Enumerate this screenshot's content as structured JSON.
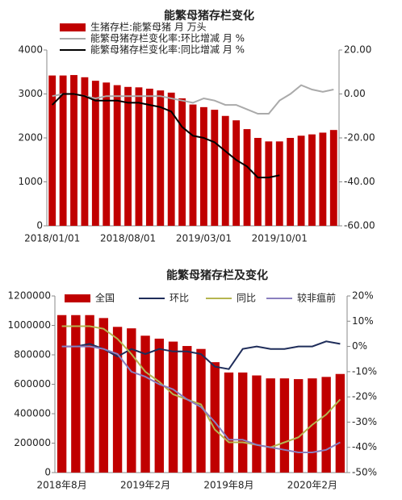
{
  "chart_data": [
    {
      "type": "combo",
      "title": "能繁母猪存栏变化",
      "categories": [
        "2018/01/01",
        null,
        null,
        null,
        null,
        null,
        null,
        "2018/08/01",
        null,
        null,
        null,
        null,
        null,
        null,
        "2019/03/01",
        null,
        null,
        null,
        null,
        null,
        null,
        "2019/10/01",
        null,
        null,
        null,
        null,
        null
      ],
      "series": [
        {
          "name": "生猪存栏:能繁母猪 月 万头",
          "color": "#c00000",
          "kind": "bar",
          "values": [
            3420,
            3420,
            3430,
            3380,
            3300,
            3260,
            3200,
            3160,
            3150,
            3120,
            3080,
            3030,
            2900,
            2760,
            2700,
            2640,
            2500,
            2400,
            2200,
            2000,
            1920,
            1920,
            2000,
            2050,
            2080,
            2120,
            2180
          ]
        },
        {
          "name": "能繁母猪存栏变化率:环比增减 月 %",
          "color": "#aaaaaa",
          "kind": "line",
          "axis": "y2",
          "values": [
            -1,
            0,
            0,
            -1,
            -2,
            -1,
            -1,
            -1,
            -1,
            -1,
            -1,
            -2,
            -3,
            -4,
            -2,
            -3,
            -5,
            -5,
            -7,
            -9,
            -9,
            -3,
            0,
            4,
            2,
            1,
            2
          ]
        },
        {
          "name": "能繁母猪存栏变化率:同比增减 月 %",
          "color": "#000000",
          "kind": "line",
          "axis": "y2",
          "values": [
            -5,
            0,
            0,
            -1,
            -3,
            -3,
            -3,
            -4,
            -4,
            -5,
            -6,
            -8,
            -15,
            -19,
            -20,
            -22,
            -26,
            -30,
            -33,
            -38,
            -38,
            -37,
            null,
            null,
            null,
            null,
            null
          ]
        }
      ],
      "ylim": [
        0,
        4000
      ],
      "yticks": [
        0,
        1000,
        2000,
        3000,
        4000
      ],
      "y2lim": [
        -60,
        20
      ],
      "y2ticks": [
        {
          "value": -60,
          "label": "-60.00"
        },
        {
          "value": -40,
          "label": "-40.00"
        },
        {
          "value": -20,
          "label": "-20.00"
        },
        {
          "value": 0,
          "label": "0.00"
        },
        {
          "value": 20,
          "label": "20.00"
        }
      ]
    },
    {
      "type": "combo",
      "title": "能繁母猪存栏及变化",
      "categories": [
        "2018年8月",
        null,
        null,
        null,
        null,
        null,
        "2019年2月",
        null,
        null,
        null,
        null,
        null,
        "2019年8月",
        null,
        null,
        null,
        null,
        null,
        "2020年2月",
        null,
        null
      ],
      "series": [
        {
          "name": "全国",
          "color": "#c00000",
          "kind": "bar",
          "values": [
            1070000,
            1070000,
            1070000,
            1050000,
            990000,
            980000,
            930000,
            910000,
            890000,
            860000,
            840000,
            750000,
            680000,
            680000,
            660000,
            640000,
            640000,
            635000,
            640000,
            650000,
            670000
          ]
        },
        {
          "name": "环比",
          "color": "#1f2d5a",
          "kind": "line",
          "axis": "y2",
          "values": [
            0,
            0,
            1,
            -1,
            -4,
            -1,
            -3,
            -1,
            -2,
            -2,
            -3,
            -8,
            -9,
            -1,
            0,
            -1,
            -1,
            0,
            0,
            2,
            1
          ]
        },
        {
          "name": "同比",
          "color": "#b5b550",
          "kind": "line",
          "axis": "y2",
          "values": [
            8,
            8,
            8,
            7,
            3,
            -3,
            -10,
            -14,
            -19,
            -21,
            -23,
            -33,
            -38,
            -38,
            -39,
            -40,
            -38,
            -36,
            -31,
            -27,
            -21
          ]
        },
        {
          "name": "较非瘟前",
          "color": "#8a7fbf",
          "kind": "line",
          "axis": "y2",
          "values": [
            0,
            0,
            0,
            -1,
            -3,
            -10,
            -12,
            -15,
            -17,
            -21,
            -24,
            -30,
            -37,
            -37,
            -39,
            -40,
            -41,
            -42,
            -42,
            -41,
            -38
          ]
        }
      ],
      "ylim": [
        0,
        1200000
      ],
      "yticks": [
        0,
        200000,
        400000,
        600000,
        800000,
        1000000,
        1200000
      ],
      "y2lim": [
        -50,
        20
      ],
      "y2ticks": [
        {
          "value": -50,
          "label": "-50%"
        },
        {
          "value": -40,
          "label": "-40%"
        },
        {
          "value": -30,
          "label": "-30%"
        },
        {
          "value": -20,
          "label": "-20%"
        },
        {
          "value": -10,
          "label": "-10%"
        },
        {
          "value": 0,
          "label": "0%"
        },
        {
          "value": 10,
          "label": "10%"
        },
        {
          "value": 20,
          "label": "20%"
        }
      ]
    }
  ]
}
